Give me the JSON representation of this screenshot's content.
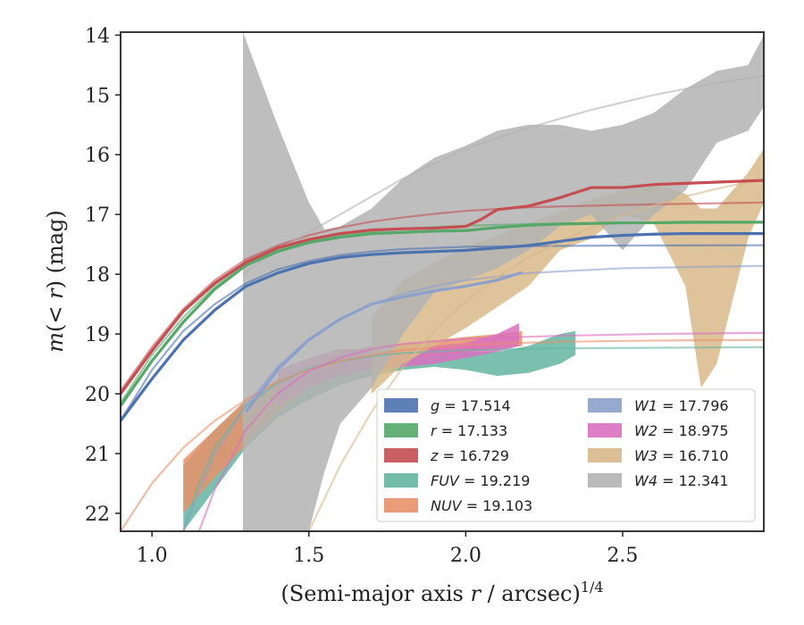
{
  "chart_data": {
    "type": "line",
    "xlabel": "(Semi-major axis r / arcsec)^1/4",
    "ylabel": "m(< r) (mag)",
    "xlim": [
      0.9,
      2.95
    ],
    "ylim": [
      22.3,
      13.95
    ],
    "y_inverted": true,
    "grid": false,
    "legend_placement": "lower-right",
    "xticks": [
      1.0,
      1.5,
      2.0,
      2.5
    ],
    "xtick_labels": [
      "1.0",
      "1.5",
      "2.0",
      "2.5"
    ],
    "yticks": [
      14,
      15,
      16,
      17,
      18,
      19,
      20,
      21,
      22
    ],
    "ytick_labels": [
      "14",
      "15",
      "16",
      "17",
      "18",
      "19",
      "20",
      "21",
      "22"
    ],
    "series": [
      {
        "name": "g = 17.514",
        "color": "#4c72b0",
        "measured": [
          [
            0.9,
            20.45
          ],
          [
            1.0,
            19.75
          ],
          [
            1.1,
            19.1
          ],
          [
            1.2,
            18.6
          ],
          [
            1.3,
            18.2
          ],
          [
            1.4,
            17.98
          ],
          [
            1.5,
            17.82
          ],
          [
            1.6,
            17.72
          ],
          [
            1.7,
            17.67
          ],
          [
            1.8,
            17.64
          ],
          [
            1.9,
            17.62
          ],
          [
            2.0,
            17.6
          ],
          [
            2.1,
            17.56
          ],
          [
            2.2,
            17.52
          ],
          [
            2.3,
            17.45
          ],
          [
            2.4,
            17.38
          ],
          [
            2.5,
            17.35
          ],
          [
            2.6,
            17.33
          ],
          [
            2.7,
            17.32
          ],
          [
            2.8,
            17.32
          ],
          [
            2.95,
            17.32
          ]
        ],
        "model": [
          [
            0.9,
            20.45
          ],
          [
            1.0,
            19.6
          ],
          [
            1.1,
            18.95
          ],
          [
            1.2,
            18.5
          ],
          [
            1.3,
            18.15
          ],
          [
            1.4,
            17.92
          ],
          [
            1.5,
            17.78
          ],
          [
            1.6,
            17.68
          ],
          [
            1.7,
            17.62
          ],
          [
            1.8,
            17.58
          ],
          [
            1.9,
            17.56
          ],
          [
            2.0,
            17.54
          ],
          [
            2.2,
            17.53
          ],
          [
            2.5,
            17.52
          ],
          [
            2.95,
            17.515
          ]
        ]
      },
      {
        "name": "r = 17.133",
        "color": "#55a868",
        "measured": [
          [
            0.9,
            20.2
          ],
          [
            1.0,
            19.45
          ],
          [
            1.1,
            18.8
          ],
          [
            1.2,
            18.25
          ],
          [
            1.3,
            17.85
          ],
          [
            1.4,
            17.62
          ],
          [
            1.5,
            17.47
          ],
          [
            1.6,
            17.38
          ],
          [
            1.7,
            17.32
          ],
          [
            1.8,
            17.3
          ],
          [
            1.9,
            17.28
          ],
          [
            2.0,
            17.27
          ],
          [
            2.1,
            17.22
          ],
          [
            2.2,
            17.18
          ],
          [
            2.3,
            17.16
          ],
          [
            2.4,
            17.15
          ],
          [
            2.5,
            17.14
          ],
          [
            2.6,
            17.14
          ],
          [
            2.7,
            17.13
          ],
          [
            2.95,
            17.13
          ]
        ],
        "model": [
          [
            0.9,
            20.15
          ],
          [
            1.0,
            19.35
          ],
          [
            1.1,
            18.72
          ],
          [
            1.2,
            18.2
          ],
          [
            1.3,
            17.82
          ],
          [
            1.4,
            17.58
          ],
          [
            1.5,
            17.44
          ],
          [
            1.6,
            17.35
          ],
          [
            1.7,
            17.28
          ],
          [
            1.8,
            17.24
          ],
          [
            1.9,
            17.21
          ],
          [
            2.0,
            17.19
          ],
          [
            2.2,
            17.16
          ],
          [
            2.5,
            17.145
          ],
          [
            2.95,
            17.135
          ]
        ]
      },
      {
        "name": "z = 16.729",
        "color": "#c44e52",
        "measured": [
          [
            0.9,
            20.0
          ],
          [
            1.0,
            19.28
          ],
          [
            1.1,
            18.62
          ],
          [
            1.2,
            18.15
          ],
          [
            1.3,
            17.8
          ],
          [
            1.4,
            17.56
          ],
          [
            1.5,
            17.42
          ],
          [
            1.6,
            17.32
          ],
          [
            1.7,
            17.26
          ],
          [
            1.8,
            17.24
          ],
          [
            1.9,
            17.23
          ],
          [
            2.0,
            17.2
          ],
          [
            2.05,
            17.08
          ],
          [
            2.1,
            16.92
          ],
          [
            2.2,
            16.86
          ],
          [
            2.3,
            16.72
          ],
          [
            2.4,
            16.55
          ],
          [
            2.5,
            16.55
          ],
          [
            2.6,
            16.5
          ],
          [
            2.7,
            16.48
          ],
          [
            2.8,
            16.46
          ],
          [
            2.95,
            16.43
          ]
        ],
        "model": [
          [
            0.9,
            19.95
          ],
          [
            1.0,
            19.22
          ],
          [
            1.1,
            18.58
          ],
          [
            1.2,
            18.1
          ],
          [
            1.3,
            17.75
          ],
          [
            1.4,
            17.52
          ],
          [
            1.5,
            17.35
          ],
          [
            1.6,
            17.22
          ],
          [
            1.7,
            17.12
          ],
          [
            1.8,
            17.05
          ],
          [
            1.9,
            16.99
          ],
          [
            2.0,
            16.94
          ],
          [
            2.2,
            16.88
          ],
          [
            2.5,
            16.84
          ],
          [
            2.95,
            16.8
          ]
        ]
      },
      {
        "name": "FUV = 19.219",
        "color": "#64b5a0",
        "band": [
          [
            1.1,
            21.2,
            22.3
          ],
          [
            1.2,
            20.6,
            21.6
          ],
          [
            1.3,
            20.1,
            20.9
          ],
          [
            1.4,
            19.8,
            20.4
          ],
          [
            1.5,
            19.6,
            20.1
          ],
          [
            1.6,
            19.45,
            19.85
          ],
          [
            1.7,
            19.35,
            19.7
          ],
          [
            1.8,
            19.3,
            19.6
          ],
          [
            1.9,
            19.28,
            19.55
          ],
          [
            2.0,
            19.3,
            19.6
          ],
          [
            2.1,
            19.3,
            19.7
          ],
          [
            2.2,
            19.2,
            19.65
          ],
          [
            2.3,
            19.0,
            19.5
          ],
          [
            2.35,
            18.95,
            19.35
          ]
        ],
        "model": [
          [
            1.1,
            22.3
          ],
          [
            1.15,
            21.5
          ],
          [
            1.2,
            20.9
          ],
          [
            1.3,
            20.2
          ],
          [
            1.4,
            19.82
          ],
          [
            1.5,
            19.58
          ],
          [
            1.6,
            19.45
          ],
          [
            1.7,
            19.37
          ],
          [
            1.8,
            19.32
          ],
          [
            2.0,
            19.27
          ],
          [
            2.3,
            19.24
          ],
          [
            2.6,
            19.23
          ],
          [
            2.95,
            19.22
          ]
        ]
      },
      {
        "name": "NUV = 19.103",
        "color": "#e8916a",
        "band": [
          [
            1.1,
            21.1,
            22.0
          ],
          [
            1.2,
            20.6,
            21.4
          ],
          [
            1.3,
            20.1,
            20.85
          ],
          [
            1.4,
            19.75,
            20.3
          ],
          [
            1.5,
            19.45,
            19.9
          ],
          [
            1.6,
            19.3,
            19.65
          ],
          [
            1.7,
            19.2,
            19.5
          ],
          [
            1.8,
            19.15,
            19.4
          ],
          [
            1.9,
            19.1,
            19.35
          ],
          [
            2.0,
            19.05,
            19.3
          ],
          [
            2.1,
            19.0,
            19.25
          ],
          [
            2.18,
            18.95,
            19.2
          ]
        ],
        "model": [
          [
            0.9,
            22.3
          ],
          [
            1.0,
            21.5
          ],
          [
            1.1,
            20.9
          ],
          [
            1.2,
            20.45
          ],
          [
            1.3,
            20.1
          ],
          [
            1.4,
            19.8
          ],
          [
            1.5,
            19.6
          ],
          [
            1.6,
            19.45
          ],
          [
            1.7,
            19.35
          ],
          [
            1.8,
            19.27
          ],
          [
            2.0,
            19.18
          ],
          [
            2.3,
            19.13
          ],
          [
            2.6,
            19.11
          ],
          [
            2.95,
            19.1
          ]
        ]
      },
      {
        "name": "W1 = 17.796",
        "color": "#8da0cb",
        "measured": [
          [
            1.3,
            20.3
          ],
          [
            1.4,
            19.6
          ],
          [
            1.5,
            19.1
          ],
          [
            1.6,
            18.75
          ],
          [
            1.7,
            18.5
          ],
          [
            1.8,
            18.38
          ],
          [
            1.9,
            18.28
          ],
          [
            2.0,
            18.2
          ],
          [
            2.1,
            18.1
          ],
          [
            2.18,
            17.97
          ]
        ],
        "model": [
          [
            1.1,
            22.3
          ],
          [
            1.2,
            21.0
          ],
          [
            1.3,
            20.2
          ],
          [
            1.4,
            19.55
          ],
          [
            1.5,
            19.08
          ],
          [
            1.6,
            18.75
          ],
          [
            1.7,
            18.5
          ],
          [
            1.8,
            18.33
          ],
          [
            1.9,
            18.2
          ],
          [
            2.0,
            18.1
          ],
          [
            2.2,
            17.98
          ],
          [
            2.5,
            17.9
          ],
          [
            2.95,
            17.86
          ]
        ]
      },
      {
        "name": "W2 = 18.975",
        "color": "#da70c0",
        "band": [
          [
            1.4,
            19.6,
            20.2
          ],
          [
            1.5,
            19.4,
            19.9
          ],
          [
            1.6,
            19.25,
            19.7
          ],
          [
            1.7,
            19.25,
            19.6
          ],
          [
            1.8,
            19.25,
            19.55
          ],
          [
            1.9,
            19.2,
            19.5
          ],
          [
            2.0,
            19.15,
            19.4
          ],
          [
            2.1,
            19.0,
            19.3
          ],
          [
            2.17,
            18.82,
            19.2
          ]
        ],
        "model": [
          [
            1.15,
            22.3
          ],
          [
            1.2,
            21.6
          ],
          [
            1.3,
            20.6
          ],
          [
            1.4,
            20.0
          ],
          [
            1.5,
            19.62
          ],
          [
            1.6,
            19.4
          ],
          [
            1.7,
            19.25
          ],
          [
            1.8,
            19.17
          ],
          [
            2.0,
            19.08
          ],
          [
            2.3,
            19.03
          ],
          [
            2.6,
            19.0
          ],
          [
            2.95,
            18.98
          ]
        ]
      },
      {
        "name": "W3 = 16.710",
        "color": "#d8b88a",
        "band": [
          [
            1.7,
            18.7,
            20.0
          ],
          [
            1.8,
            18.1,
            19.5
          ],
          [
            1.9,
            17.8,
            19.2
          ],
          [
            2.0,
            17.55,
            18.9
          ],
          [
            2.1,
            17.35,
            18.55
          ],
          [
            2.2,
            17.15,
            18.2
          ],
          [
            2.3,
            16.95,
            17.6
          ],
          [
            2.4,
            16.75,
            17.4
          ],
          [
            2.5,
            16.6,
            17.0
          ],
          [
            2.6,
            16.5,
            17.15
          ],
          [
            2.7,
            16.65,
            18.2
          ],
          [
            2.75,
            16.9,
            19.9
          ],
          [
            2.8,
            16.9,
            19.5
          ],
          [
            2.9,
            16.3,
            17.4
          ],
          [
            2.95,
            15.9,
            16.8
          ]
        ],
        "model": [
          [
            1.5,
            22.3
          ],
          [
            1.6,
            21.2
          ],
          [
            1.7,
            20.3
          ],
          [
            1.8,
            19.55
          ],
          [
            1.9,
            18.95
          ],
          [
            2.0,
            18.45
          ],
          [
            2.1,
            18.05
          ],
          [
            2.2,
            17.72
          ],
          [
            2.3,
            17.45
          ],
          [
            2.4,
            17.22
          ],
          [
            2.5,
            17.02
          ],
          [
            2.6,
            16.85
          ],
          [
            2.7,
            16.7
          ],
          [
            2.8,
            16.57
          ],
          [
            2.95,
            16.4
          ]
        ]
      },
      {
        "name": "W4 = 12.341",
        "color": "#b3b3b3",
        "band": [
          [
            1.29,
            13.95,
            22.3
          ],
          [
            1.4,
            15.5,
            22.3
          ],
          [
            1.5,
            16.8,
            22.3
          ],
          [
            1.55,
            17.25,
            21.3
          ],
          [
            1.6,
            17.2,
            20.5
          ],
          [
            1.7,
            16.9,
            19.9
          ],
          [
            1.8,
            16.4,
            19.0
          ],
          [
            1.9,
            16.05,
            18.3
          ],
          [
            2.0,
            15.85,
            18.1
          ],
          [
            2.1,
            15.6,
            17.9
          ],
          [
            2.2,
            15.5,
            17.6
          ],
          [
            2.3,
            15.5,
            17.2
          ],
          [
            2.4,
            15.6,
            17.0
          ],
          [
            2.5,
            15.5,
            17.6
          ],
          [
            2.6,
            15.3,
            17.0
          ],
          [
            2.7,
            14.9,
            16.6
          ],
          [
            2.8,
            14.6,
            15.8
          ],
          [
            2.9,
            14.5,
            15.6
          ],
          [
            2.95,
            14.0,
            15.2
          ]
        ],
        "model": [
          [
            1.29,
            18.0
          ],
          [
            1.4,
            17.6
          ],
          [
            1.5,
            17.3
          ],
          [
            1.6,
            17.0
          ],
          [
            1.7,
            16.7
          ],
          [
            1.8,
            16.4
          ],
          [
            1.9,
            16.15
          ],
          [
            2.0,
            15.9
          ],
          [
            2.2,
            15.55
          ],
          [
            2.4,
            15.25
          ],
          [
            2.6,
            15.0
          ],
          [
            2.8,
            14.8
          ],
          [
            2.95,
            14.68
          ]
        ]
      }
    ]
  }
}
